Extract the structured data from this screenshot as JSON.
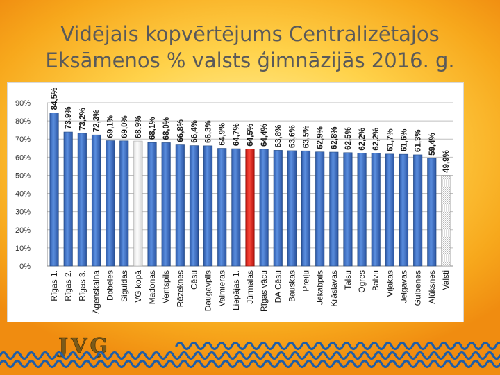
{
  "brand": "",
  "title_lines": [
    "Vidējais kopvērtējums Centralizētajos",
    "Eksāmenos % valsts ģimnāzijās 2016. g."
  ],
  "logo_text": "JVĢ",
  "colors": {
    "bar": "#3f73c6",
    "bar_highlight_red": "#e8231a",
    "bar_highlight_white": "#f2f2f2",
    "bar_valsti": "#ffffff",
    "wave": "#1f5ea8"
  },
  "chart_data": {
    "type": "bar",
    "title": "Vidējais kopvērtējums Centralizētajos Eksāmenos % valsts ģimnāzijās 2016. g.",
    "xlabel": "",
    "ylabel": "",
    "ylim": [
      0,
      90
    ],
    "yticks": [
      "0%",
      "10%",
      "20%",
      "30%",
      "40%",
      "50%",
      "60%",
      "70%",
      "80%",
      "90%"
    ],
    "grid": true,
    "legend": "none",
    "categories": [
      "Rīgas 1.",
      "Rīgas 2.",
      "Rīgas 3.",
      "Āgenskalna",
      "Dobeles",
      "Siguldas",
      "VG kopā",
      "Madonas",
      "Ventspils",
      "Rēzeknes",
      "Cēsu",
      "Daugavpils",
      "Valmieras",
      "Liepājas 1.",
      "Jūrmalas",
      "Rīgas vācu",
      "DA Cēsu",
      "Bauskas",
      "Preiļu",
      "Jēkabpils",
      "Krāslavas",
      "Talsu",
      "Ogres",
      "Balvu",
      "Viļakas",
      "Jelgavas",
      "Gulbenes",
      "Alūksnes",
      "Valsti"
    ],
    "values": [
      84.5,
      73.9,
      73.2,
      72.3,
      69.1,
      69.0,
      68.9,
      68.1,
      68.0,
      66.8,
      66.4,
      66.3,
      64.9,
      64.7,
      64.5,
      64.4,
      63.8,
      63.6,
      63.5,
      62.9,
      62.8,
      62.5,
      62.2,
      62.2,
      61.7,
      61.6,
      61.3,
      59.4,
      49.9
    ],
    "labels": [
      "84,5%",
      "73,9%",
      "73,2%",
      "72,3%",
      "69,1%",
      "69,0%",
      "68,9%",
      "68,1%",
      "68,0%",
      "66,8%",
      "66,4%",
      "66,3%",
      "64,9%",
      "64,7%",
      "64,5%",
      "64,4%",
      "63,8%",
      "63,6%",
      "63,5%",
      "62,9%",
      "62,8%",
      "62,5%",
      "62,2%",
      "62,2%",
      "61,7%",
      "61,6%",
      "61,3%",
      "59,4%",
      "49,9%"
    ],
    "highlight": {
      "VG kopā": "white",
      "Jūrmalas": "red",
      "Valsti": "hatched"
    }
  }
}
